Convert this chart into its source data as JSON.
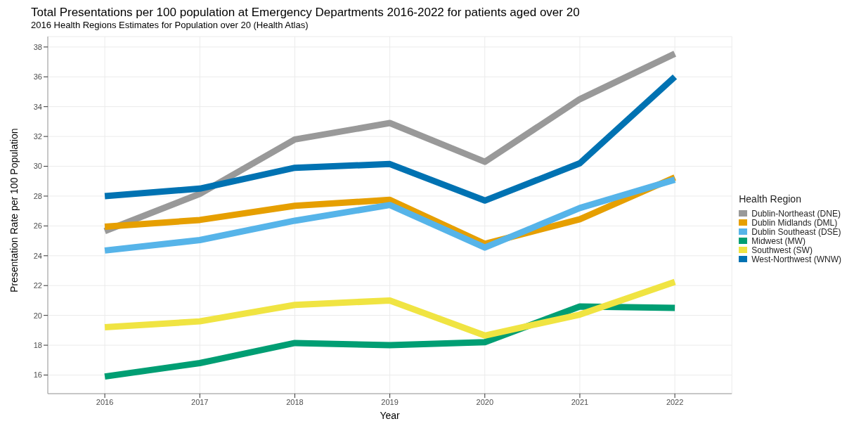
{
  "chart_data": {
    "type": "line",
    "title": "Total Presentations per 100 population at Emergency Departments 2016-2022 for patients aged over 20",
    "subtitle": "2016 Health Regions Estimates for Population over 20 (Health Atlas)",
    "xlabel": "Year",
    "ylabel": "Presentation Rate per 100 Population",
    "legend_title": "Health Region",
    "x": [
      2016,
      2017,
      2018,
      2019,
      2020,
      2021,
      2022
    ],
    "xlim": [
      2015.4,
      2022.6
    ],
    "xticks": [
      2016,
      2017,
      2018,
      2019,
      2020,
      2021,
      2022
    ],
    "ylim": [
      14.75,
      38.7
    ],
    "yticks": [
      16,
      18,
      20,
      22,
      24,
      26,
      28,
      30,
      32,
      34,
      36,
      38
    ],
    "grid": true,
    "legend": "right",
    "marker": "none",
    "line_style": "solid",
    "series": [
      {
        "name": "Dublin-Northeast (DNE)",
        "color": "#999999",
        "values": [
          25.65,
          28.15,
          31.8,
          32.9,
          30.3,
          34.5,
          37.55
        ]
      },
      {
        "name": "Dublin Midlands (DML)",
        "color": "#e69f00",
        "values": [
          25.95,
          26.4,
          27.35,
          27.75,
          24.8,
          26.45,
          29.25
        ]
      },
      {
        "name": "Dublin Southeast (DSE)",
        "color": "#56b4e9",
        "values": [
          24.35,
          25.05,
          26.35,
          27.4,
          24.55,
          27.2,
          29.1
        ]
      },
      {
        "name": "Midwest (MW)",
        "color": "#009e73",
        "values": [
          15.9,
          16.8,
          18.15,
          18.0,
          18.2,
          20.6,
          20.5
        ]
      },
      {
        "name": "Southwest (SW)",
        "color": "#f0e442",
        "values": [
          19.2,
          19.6,
          20.7,
          21.0,
          18.65,
          20.05,
          22.25
        ]
      },
      {
        "name": "West-Northwest (WNW)",
        "color": "#0072b2",
        "values": [
          28.0,
          28.5,
          29.9,
          30.15,
          27.7,
          30.2,
          36.0
        ]
      }
    ]
  }
}
